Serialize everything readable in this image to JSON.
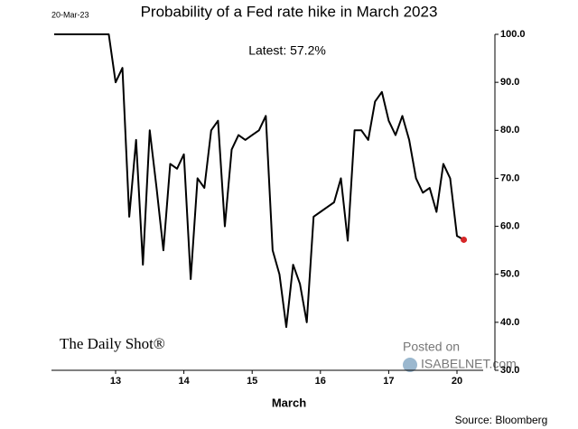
{
  "chart_data": {
    "type": "line",
    "title": "Probability of a Fed rate hike in March 2023",
    "date_label": "20-Mar-23",
    "annotation": "Latest:  57.2%",
    "x_label": "March",
    "source": "Source: Bloomberg",
    "brand": "The Daily Shot®",
    "watermark_top": "Posted on",
    "watermark_bottom": "ISABELNET.com",
    "categories": [
      null,
      null,
      null,
      null,
      null,
      null,
      null,
      null,
      null,
      "13",
      null,
      null,
      null,
      null,
      null,
      null,
      null,
      null,
      null,
      "14",
      null,
      null,
      null,
      null,
      null,
      null,
      null,
      null,
      null,
      "15",
      null,
      null,
      null,
      null,
      null,
      null,
      null,
      null,
      null,
      "16",
      null,
      null,
      null,
      null,
      null,
      null,
      null,
      null,
      null,
      "17",
      null,
      null,
      null,
      null,
      null,
      null,
      null,
      null,
      null,
      "20",
      null
    ],
    "series": [
      {
        "name": "Probability",
        "color": "#000000",
        "values": [
          100,
          100,
          100,
          100,
          100,
          100,
          100,
          100,
          100,
          90,
          93,
          62,
          78,
          52,
          80,
          68,
          55,
          73,
          72,
          75,
          49,
          70,
          68,
          80,
          82,
          60,
          76,
          79,
          78,
          79,
          80,
          83,
          55,
          50,
          39,
          52,
          48,
          40,
          62,
          63,
          64,
          65,
          70,
          57,
          80,
          80,
          78,
          86,
          88,
          82,
          79,
          83,
          78,
          70,
          67,
          68,
          63,
          73,
          70,
          58,
          57.2
        ]
      }
    ],
    "latest_color": "#d62728",
    "ylim": [
      30,
      100
    ],
    "yticks": [
      {
        "value": 30,
        "label": "30.0"
      },
      {
        "value": 40,
        "label": "40.0"
      },
      {
        "value": 50,
        "label": "50.0"
      },
      {
        "value": 60,
        "label": "60.0"
      },
      {
        "value": 70,
        "label": "70.0"
      },
      {
        "value": 80,
        "label": "80.0"
      },
      {
        "value": 90,
        "label": "90.0"
      },
      {
        "value": 100,
        "label": "100.0"
      }
    ]
  }
}
